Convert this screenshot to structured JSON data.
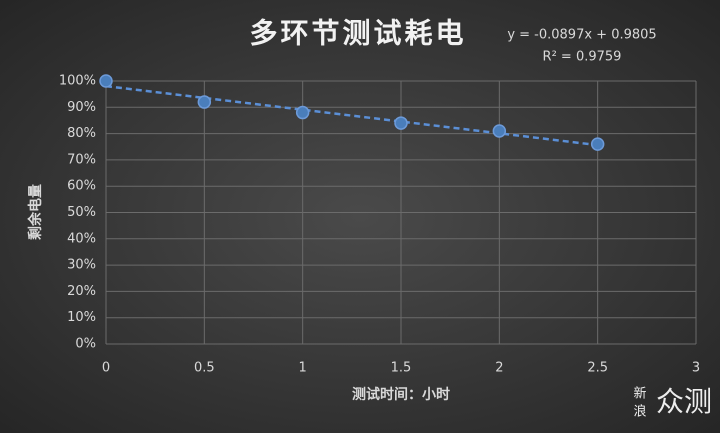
{
  "chart_data": {
    "type": "scatter",
    "title": "多环节测试耗电",
    "annotations": [
      "y = -0.0897x + 0.9805",
      "R² = 0.9759"
    ],
    "x_label": "测试时间：小时",
    "y_label": "剩余电量",
    "x": [
      0,
      0.5,
      1,
      1.5,
      2,
      2.5
    ],
    "values": [
      100,
      92,
      88,
      84,
      81,
      76
    ],
    "color": "#4a7ebb",
    "trendline": "linear",
    "xlim": [
      0,
      3
    ],
    "xticks": [
      0,
      0.5,
      1,
      1.5,
      2,
      2.5,
      3
    ],
    "ylim": [
      0,
      100
    ],
    "yticks": [
      {
        "value": 0,
        "label": "0%"
      },
      {
        "value": 10,
        "label": "10%"
      },
      {
        "value": 20,
        "label": "20%"
      },
      {
        "value": 30,
        "label": "30%"
      },
      {
        "value": 40,
        "label": "40%"
      },
      {
        "value": 50,
        "label": "50%"
      },
      {
        "value": 60,
        "label": "60%"
      },
      {
        "value": 70,
        "label": "70%"
      },
      {
        "value": 80,
        "label": "80%"
      },
      {
        "value": 90,
        "label": "90%"
      },
      {
        "value": 100,
        "label": "100%"
      }
    ],
    "grid": true,
    "watermark": {
      "small": [
        "新",
        "浪"
      ],
      "large": "众测"
    }
  }
}
